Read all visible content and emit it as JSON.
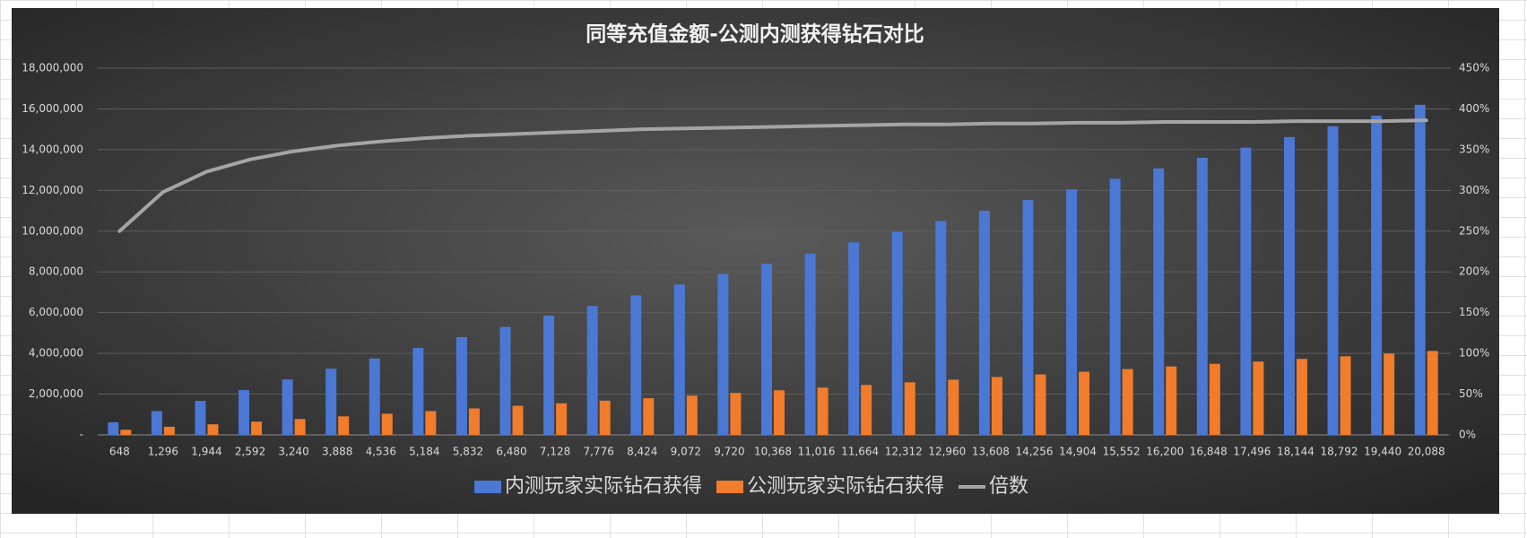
{
  "chart_data": {
    "type": "bar-line",
    "title": "同等充值金额-公测内测获得钻石对比",
    "categories": [
      "648",
      "1,296",
      "1,944",
      "2,592",
      "3,240",
      "3,888",
      "4,536",
      "5,184",
      "5,832",
      "6,480",
      "7,128",
      "7,776",
      "8,424",
      "9,072",
      "9,720",
      "10,368",
      "11,016",
      "11,664",
      "12,312",
      "12,960",
      "13,608",
      "14,256",
      "14,904",
      "15,552",
      "16,200",
      "16,848",
      "17,496",
      "18,144",
      "18,792",
      "19,440",
      "20,088"
    ],
    "series": [
      {
        "name": "内测玩家实际钻石获得",
        "type": "bar",
        "color": "#4a78d4",
        "values": [
          620000,
          1170000,
          1670000,
          2200000,
          2720000,
          3250000,
          3750000,
          4270000,
          4800000,
          5300000,
          5850000,
          6330000,
          6850000,
          7380000,
          7900000,
          8400000,
          8900000,
          9450000,
          9970000,
          10500000,
          11000000,
          11530000,
          12050000,
          12570000,
          13080000,
          13600000,
          14100000,
          14620000,
          15150000,
          15670000,
          16200000
        ]
      },
      {
        "name": "公测玩家实际钻石获得",
        "type": "bar",
        "color": "#f07c2c",
        "values": [
          250000,
          400000,
          520000,
          650000,
          780000,
          910000,
          1040000,
          1170000,
          1300000,
          1430000,
          1550000,
          1680000,
          1800000,
          1930000,
          2060000,
          2190000,
          2320000,
          2450000,
          2580000,
          2710000,
          2840000,
          2970000,
          3100000,
          3230000,
          3360000,
          3490000,
          3600000,
          3730000,
          3860000,
          3990000,
          4120000
        ]
      },
      {
        "name": "倍数",
        "type": "line",
        "axis": "y2",
        "color": "#a5a5a5",
        "values": [
          250,
          298,
          323,
          338,
          348,
          355,
          360,
          364,
          367,
          369,
          371,
          373,
          375,
          376,
          377,
          378,
          379,
          380,
          381,
          381,
          382,
          382,
          383,
          383,
          384,
          384,
          384,
          385,
          385,
          385,
          386
        ]
      }
    ],
    "ylim": [
      0,
      18000000
    ],
    "yticks": [
      {
        "value": 0,
        "label": "-"
      },
      {
        "value": 2000000,
        "label": "2,000,000"
      },
      {
        "value": 4000000,
        "label": "4,000,000"
      },
      {
        "value": 6000000,
        "label": "6,000,000"
      },
      {
        "value": 8000000,
        "label": "8,000,000"
      },
      {
        "value": 10000000,
        "label": "10,000,000"
      },
      {
        "value": 12000000,
        "label": "12,000,000"
      },
      {
        "value": 14000000,
        "label": "14,000,000"
      },
      {
        "value": 16000000,
        "label": "16,000,000"
      },
      {
        "value": 18000000,
        "label": "18,000,000"
      }
    ],
    "y2lim": [
      0,
      450
    ],
    "y2ticks": [
      {
        "value": 0,
        "label": "0%"
      },
      {
        "value": 50,
        "label": "50%"
      },
      {
        "value": 100,
        "label": "100%"
      },
      {
        "value": 150,
        "label": "150%"
      },
      {
        "value": 200,
        "label": "200%"
      },
      {
        "value": 250,
        "label": "250%"
      },
      {
        "value": 300,
        "label": "300%"
      },
      {
        "value": 350,
        "label": "350%"
      },
      {
        "value": 400,
        "label": "400%"
      },
      {
        "value": 450,
        "label": "450%"
      }
    ],
    "grid": true,
    "legend": "bottom"
  }
}
